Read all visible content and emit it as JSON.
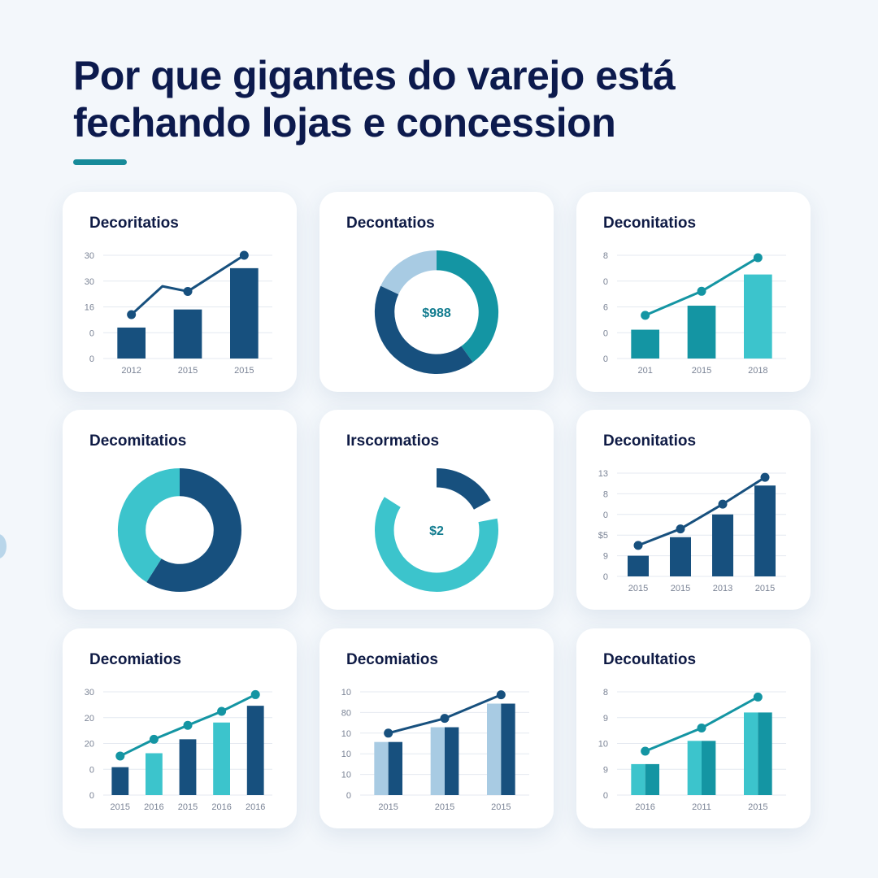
{
  "page": {
    "title_line1": "Por que gigantes do varejo está",
    "title_line2": "fechando lojas e concession"
  },
  "colors": {
    "navy": "#17507e",
    "teal": "#1495a3",
    "cyan": "#3cc4cc",
    "light_blue": "#a8cbe3",
    "grid": "#e4e9f0"
  },
  "chart_data": [
    {
      "title": "Decoritatios",
      "type": "bar",
      "categories": [
        "2012",
        "2015",
        "2015"
      ],
      "ylabels": [
        "30",
        "30",
        "16",
        "0",
        "0"
      ],
      "values": [
        12,
        19,
        35
      ],
      "bar_styles": [
        "navy",
        "navy",
        "navy"
      ],
      "line": [
        17,
        26,
        40
      ],
      "line_color": "navy",
      "line_kink": [
        26,
        28
      ],
      "ylim": [
        0,
        40
      ],
      "grid": true
    },
    {
      "title": "Decontatios",
      "type": "pie",
      "center_label": "$988",
      "slices": [
        {
          "value": 40,
          "color": "teal"
        },
        {
          "value": 42,
          "color": "navy"
        },
        {
          "value": 18,
          "color": "light_blue"
        }
      ],
      "thickness": 0.32
    },
    {
      "title": "Deconitatios",
      "type": "bar",
      "categories": [
        "201",
        "2015",
        "2018"
      ],
      "ylabels": [
        "8",
        "0",
        "6",
        "0",
        "0"
      ],
      "values": [
        12,
        22,
        35
      ],
      "bar_styles": [
        "teal",
        "teal",
        "cyan"
      ],
      "line": [
        18,
        28,
        42
      ],
      "line_color": "teal",
      "ylim": [
        0,
        43
      ],
      "grid": true
    },
    {
      "title": "Decomitatios",
      "type": "pie",
      "center_label": "",
      "slices": [
        {
          "value": 59,
          "color": "navy"
        },
        {
          "value": 41,
          "color": "cyan"
        }
      ],
      "thickness": 0.45
    },
    {
      "title": "Irscormatios",
      "type": "pie",
      "center_label": "$2",
      "slices": [
        {
          "value": 17,
          "color": "navy"
        },
        {
          "value": 5,
          "color": "gap"
        },
        {
          "value": 62,
          "color": "cyan"
        },
        {
          "value": 16,
          "color": "gap"
        }
      ],
      "thickness": 0.31
    },
    {
      "title": "Deconitatios",
      "type": "bar",
      "categories": [
        "2015",
        "2015",
        "2013",
        "2015"
      ],
      "ylabels": [
        "13",
        "8",
        "0",
        "$5",
        "9",
        "0"
      ],
      "values": [
        10,
        19,
        30,
        44
      ],
      "bar_styles": [
        "navy",
        "navy",
        "navy",
        "navy"
      ],
      "line": [
        15,
        23,
        35,
        48
      ],
      "line_color": "navy",
      "ylim": [
        0,
        50
      ],
      "grid": true
    },
    {
      "title": "Decomiatios",
      "type": "bar",
      "categories": [
        "2015",
        "2016",
        "2015",
        "2016",
        "2016"
      ],
      "ylabels": [
        "30",
        "20",
        "20",
        "0",
        "0"
      ],
      "values": [
        10,
        15,
        20,
        26,
        32
      ],
      "bar_styles": [
        "navy",
        "cyan",
        "navy",
        "cyan",
        "navy"
      ],
      "line": [
        14,
        20,
        25,
        30,
        36
      ],
      "line_color": "teal",
      "ylim": [
        0,
        37
      ],
      "grid": true
    },
    {
      "title": "Decomiatios",
      "type": "bar",
      "categories": [
        "2015",
        "2015",
        "2015"
      ],
      "ylabels": [
        "10",
        "80",
        "10",
        "10",
        "10",
        "0"
      ],
      "values": [
        18,
        23,
        31
      ],
      "bar_styles": [
        "split",
        "split",
        "split"
      ],
      "line": [
        21,
        26,
        34
      ],
      "line_color": "navy",
      "ylim": [
        0,
        35
      ],
      "grid": true
    },
    {
      "title": "Decoultatios",
      "type": "bar",
      "categories": [
        "2016",
        "2011",
        "2015"
      ],
      "ylabels": [
        "8",
        "9",
        "10",
        "9",
        "0"
      ],
      "values": [
        12,
        21,
        32
      ],
      "bar_styles": [
        "tealsplit",
        "tealsplit",
        "tealsplit"
      ],
      "line": [
        17,
        26,
        38
      ],
      "line_color": "teal",
      "ylim": [
        0,
        40
      ],
      "grid": true
    }
  ]
}
